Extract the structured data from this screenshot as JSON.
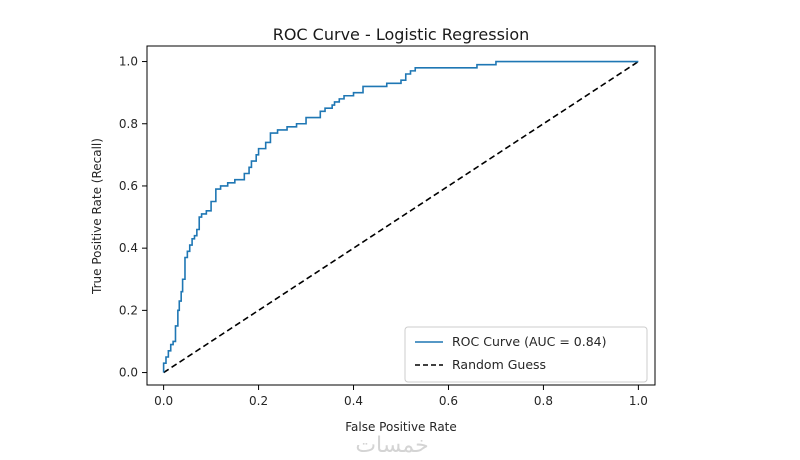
{
  "chart_data": {
    "type": "line",
    "title": "ROC Curve - Logistic Regression",
    "xlabel": "False Positive Rate",
    "ylabel": "True Positive Rate (Recall)",
    "xlim": [
      -0.035,
      1.035
    ],
    "ylim": [
      -0.04,
      1.05
    ],
    "xticks": [
      0.0,
      0.2,
      0.4,
      0.6,
      0.8,
      1.0
    ],
    "xtick_labels": [
      "0.0",
      "0.2",
      "0.4",
      "0.6",
      "0.8",
      "1.0"
    ],
    "yticks": [
      0.0,
      0.2,
      0.4,
      0.6,
      0.8,
      1.0
    ],
    "ytick_labels": [
      "0.0",
      "0.2",
      "0.4",
      "0.6",
      "0.8",
      "1.0"
    ],
    "grid": false,
    "legend_position": "bottom-right",
    "series": [
      {
        "name": "ROC Curve (AUC = 0.84)",
        "color": "#1f77b4",
        "style": "solid",
        "x": [
          0.0,
          0.0,
          0.005,
          0.005,
          0.01,
          0.01,
          0.015,
          0.015,
          0.02,
          0.02,
          0.025,
          0.025,
          0.03,
          0.03,
          0.033,
          0.033,
          0.037,
          0.037,
          0.04,
          0.04,
          0.045,
          0.045,
          0.05,
          0.05,
          0.055,
          0.055,
          0.06,
          0.06,
          0.065,
          0.065,
          0.07,
          0.07,
          0.075,
          0.075,
          0.08,
          0.08,
          0.09,
          0.09,
          0.1,
          0.1,
          0.11,
          0.11,
          0.12,
          0.12,
          0.135,
          0.135,
          0.15,
          0.15,
          0.17,
          0.17,
          0.18,
          0.18,
          0.185,
          0.185,
          0.195,
          0.195,
          0.2,
          0.2,
          0.215,
          0.215,
          0.225,
          0.225,
          0.24,
          0.24,
          0.26,
          0.26,
          0.28,
          0.28,
          0.3,
          0.3,
          0.33,
          0.33,
          0.34,
          0.34,
          0.355,
          0.355,
          0.36,
          0.36,
          0.37,
          0.37,
          0.38,
          0.38,
          0.4,
          0.4,
          0.42,
          0.42,
          0.44,
          0.44,
          0.47,
          0.47,
          0.5,
          0.5,
          0.51,
          0.51,
          0.52,
          0.52,
          0.53,
          0.53,
          0.55,
          0.55,
          0.66,
          0.66,
          0.7,
          0.7,
          1.0
        ],
        "y": [
          0.0,
          0.03,
          0.03,
          0.05,
          0.05,
          0.07,
          0.07,
          0.09,
          0.09,
          0.1,
          0.1,
          0.15,
          0.15,
          0.2,
          0.2,
          0.23,
          0.23,
          0.26,
          0.26,
          0.3,
          0.3,
          0.37,
          0.37,
          0.39,
          0.39,
          0.41,
          0.41,
          0.43,
          0.43,
          0.44,
          0.44,
          0.46,
          0.46,
          0.5,
          0.5,
          0.51,
          0.51,
          0.52,
          0.52,
          0.55,
          0.55,
          0.59,
          0.59,
          0.6,
          0.6,
          0.61,
          0.61,
          0.62,
          0.62,
          0.64,
          0.64,
          0.66,
          0.66,
          0.68,
          0.68,
          0.7,
          0.7,
          0.72,
          0.72,
          0.74,
          0.74,
          0.77,
          0.77,
          0.78,
          0.78,
          0.79,
          0.79,
          0.8,
          0.8,
          0.82,
          0.82,
          0.84,
          0.84,
          0.85,
          0.85,
          0.86,
          0.86,
          0.87,
          0.87,
          0.88,
          0.88,
          0.89,
          0.89,
          0.9,
          0.9,
          0.92,
          0.92,
          0.92,
          0.92,
          0.93,
          0.93,
          0.94,
          0.94,
          0.96,
          0.96,
          0.97,
          0.97,
          0.98,
          0.98,
          0.98,
          0.98,
          0.99,
          0.99,
          1.0,
          1.0
        ]
      },
      {
        "name": "Random Guess",
        "color": "#000000",
        "style": "dashed",
        "x": [
          0.0,
          1.0
        ],
        "y": [
          0.0,
          1.0
        ]
      }
    ],
    "watermark": "خمسات"
  }
}
